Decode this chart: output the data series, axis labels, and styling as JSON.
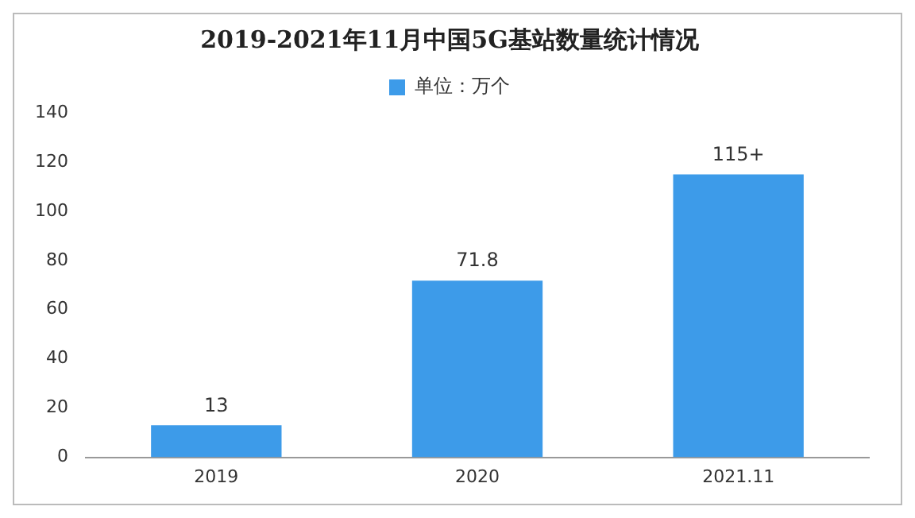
{
  "chart_data": {
    "type": "bar",
    "title": "2019-2021年11月中国5G基站数量统计情况",
    "categories": [
      "2019",
      "2020",
      "2021.11"
    ],
    "series": [
      {
        "name": "单位：万个",
        "color": "#3d9be9",
        "values": [
          13,
          71.8,
          115
        ],
        "value_labels": [
          "13",
          "71.8",
          "115+"
        ]
      }
    ],
    "ylim": [
      0,
      140
    ],
    "yticks": [
      0,
      20,
      40,
      60,
      80,
      100,
      120,
      140
    ],
    "grid": false,
    "legend": "top"
  }
}
